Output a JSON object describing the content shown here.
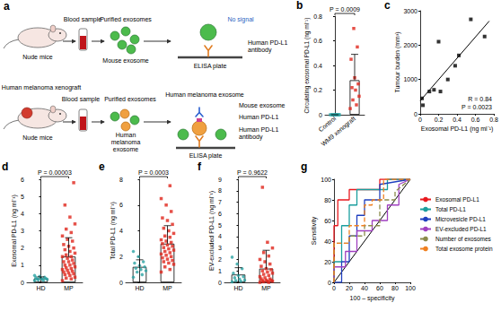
{
  "diagram": {
    "panel": "a",
    "rows": [
      {
        "mouse": "Nude mice",
        "blood": "Blood sample",
        "purified": "Purified exosomes",
        "exosome": "Mouse exosome",
        "signal": "No signal",
        "antibody": [
          "Human PD-L1",
          "antibody"
        ],
        "plate": "ELISA plate"
      },
      {
        "xenograft": "Human melanoma xenograft",
        "mouse": "Nude mice",
        "blood": "Blood sample",
        "purified": "Purified exosomes",
        "cluster_label": [
          "Human",
          "melanoma",
          "exosome"
        ],
        "mouse_exosome": "Mouse exosome",
        "melanoma_exosome": "Human melanoma exosome",
        "pdl1": "Human PD-L1",
        "antibody": [
          "Human PD-L1",
          "antibody"
        ],
        "plate": "ELISA plate"
      }
    ]
  },
  "chart_data": [
    {
      "panel": "b",
      "type": "bar",
      "categories": [
        "Control",
        "WM9 xenograft"
      ],
      "values": [
        0,
        0.28
      ],
      "error": [
        0,
        0.21
      ],
      "groups": [
        {
          "color": "#2aa3a3",
          "marker": "square",
          "points": [
            0,
            0,
            0,
            0,
            0,
            0,
            0,
            0
          ]
        },
        {
          "color": "#e0251b",
          "marker": "square",
          "points": [
            0.05,
            0.08,
            0.12,
            0.15,
            0.2,
            0.22,
            0.25,
            0.3,
            0.45,
            0.55,
            0.7
          ]
        }
      ],
      "ylabel": "Circulating exosomal PD-L1 (ng ml⁻¹)",
      "ylim": [
        0,
        0.8
      ],
      "yticks": [
        0,
        0.2,
        0.4,
        0.6,
        0.8
      ],
      "annotation": "P = 0.0009",
      "grid": false
    },
    {
      "panel": "c",
      "type": "scatter",
      "x": [
        0.02,
        0.03,
        0.1,
        0.15,
        0.2,
        0.22,
        0.3,
        0.38,
        0.42,
        0.55,
        0.7
      ],
      "values": [
        450,
        250,
        650,
        700,
        2100,
        650,
        1000,
        1400,
        1700,
        2750,
        2250
      ],
      "color": "#000000",
      "marker": "square",
      "fit": {
        "x": [
          0,
          0.75
        ],
        "values": [
          380,
          2700
        ]
      },
      "xlabel": "Exosomal PD-L1 (ng ml⁻¹)",
      "ylabel": "Tumour burden (mm³)",
      "xlim": [
        0,
        0.8
      ],
      "xticks": [
        0,
        0.2,
        0.4,
        0.6,
        0.8
      ],
      "ylim": [
        0,
        3000
      ],
      "yticks": [
        0,
        1000,
        2000,
        3000
      ],
      "annotations": [
        "R = 0.84",
        "P = 0.0023"
      ],
      "grid": false
    },
    {
      "panel": "d",
      "type": "bar",
      "categories": [
        "HD",
        "MP"
      ],
      "values": [
        0.23,
        1.5
      ],
      "error": [
        0.09,
        1.1
      ],
      "groups": [
        {
          "color": "#2aa3a3",
          "marker": "circle",
          "points": [
            0.1,
            0.12,
            0.15,
            0.18,
            0.2,
            0.2,
            0.22,
            0.25,
            0.28,
            0.3,
            0.35,
            0.4
          ]
        },
        {
          "color": "#e0251b",
          "marker": "square",
          "points": [
            0.1,
            0.2,
            0.25,
            0.3,
            0.4,
            0.45,
            0.5,
            0.55,
            0.6,
            0.65,
            0.7,
            0.75,
            0.8,
            0.85,
            0.9,
            1.0,
            1.0,
            1.1,
            1.2,
            1.2,
            1.3,
            1.4,
            1.5,
            1.5,
            1.6,
            1.7,
            1.8,
            1.9,
            2.0,
            2.1,
            2.2,
            2.4,
            2.5,
            2.7,
            2.9,
            3.1,
            3.4,
            3.8,
            4.5,
            5.8
          ]
        }
      ],
      "ylabel": "Exosomal PD-L1 (ng ml⁻¹)",
      "ylim": [
        0,
        6
      ],
      "yticks": [
        0,
        1,
        2,
        3,
        4,
        5,
        6
      ],
      "annotation": "P = 0.00003",
      "grid": false
    },
    {
      "panel": "e",
      "type": "bar",
      "categories": [
        "HD",
        "MP"
      ],
      "values": [
        1.2,
        3.0
      ],
      "error": [
        0.55,
        1.4
      ],
      "groups": [
        {
          "color": "#2aa3a3",
          "marker": "circle",
          "points": [
            0.4,
            0.6,
            0.8,
            0.9,
            1.0,
            1.1,
            1.2,
            1.3,
            1.5,
            1.6,
            2.0,
            2.4
          ]
        },
        {
          "color": "#e0251b",
          "marker": "square",
          "points": [
            0.8,
            1.0,
            1.2,
            1.4,
            1.5,
            1.6,
            1.7,
            1.8,
            1.9,
            2.0,
            2.1,
            2.2,
            2.3,
            2.4,
            2.5,
            2.6,
            2.7,
            2.8,
            2.9,
            3.0,
            3.1,
            3.2,
            3.3,
            3.5,
            3.6,
            3.8,
            4.0,
            4.2,
            4.5,
            4.8,
            5.0,
            5.5,
            6.0,
            6.5,
            7.5
          ]
        }
      ],
      "ylabel": "Total PD-L1 (ng ml⁻¹)",
      "ylim": [
        0,
        8
      ],
      "yticks": [
        0,
        2,
        4,
        6,
        8
      ],
      "annotation": "P = 0.0003",
      "grid": false
    },
    {
      "panel": "f",
      "type": "bar",
      "categories": [
        "HD",
        "MP"
      ],
      "values": [
        0.68,
        1.2
      ],
      "error": [
        0.6,
        1.6
      ],
      "groups": [
        {
          "color": "#2aa3a3",
          "marker": "circle",
          "points": [
            0.05,
            0.1,
            0.15,
            0.2,
            0.3,
            0.4,
            0.5,
            0.6,
            0.8,
            1.2,
            1.6,
            2.2
          ]
        },
        {
          "color": "#e0251b",
          "marker": "square",
          "points": [
            0,
            0,
            0.05,
            0.1,
            0.1,
            0.15,
            0.2,
            0.2,
            0.3,
            0.3,
            0.4,
            0.5,
            0.6,
            0.7,
            0.8,
            0.9,
            1.0,
            1.1,
            1.2,
            1.4,
            1.6,
            1.8,
            2.0,
            2.3,
            2.6,
            3.0,
            3.5,
            8.3
          ]
        }
      ],
      "ylabel": "EV-excluded PD-L1 (ng ml⁻¹)",
      "ylim": [
        0,
        9
      ],
      "yticks": [
        0,
        1,
        2,
        3,
        4,
        5,
        6,
        7,
        8,
        9
      ],
      "annotation": "P = 0.9622",
      "grid": false
    },
    {
      "panel": "g",
      "type": "line",
      "xlabel": "100 – specificity",
      "ylabel": "Sensitivity",
      "xlim": [
        0,
        100
      ],
      "xticks": [
        0,
        20,
        40,
        60,
        80,
        100
      ],
      "ylim": [
        0,
        100
      ],
      "yticks": [
        0,
        20,
        40,
        60,
        80,
        100
      ],
      "legend": "right",
      "grid": false,
      "series": [
        {
          "name": "Exosomal PD-L1",
          "color": "#e8191f",
          "line_style": "solid",
          "x": [
            0,
            0,
            5,
            5,
            20,
            20,
            60,
            60,
            100
          ],
          "values": [
            0,
            55,
            55,
            80,
            80,
            90,
            90,
            100,
            100
          ]
        },
        {
          "name": "Total PD-L1",
          "color": "#1a9e9e",
          "line_style": "solid",
          "x": [
            0,
            0,
            10,
            10,
            20,
            20,
            30,
            30,
            70,
            70,
            100
          ],
          "values": [
            0,
            20,
            20,
            55,
            55,
            75,
            75,
            90,
            90,
            100,
            100
          ]
        },
        {
          "name": "Microvesicle PD-L1",
          "color": "#1f3fbf",
          "line_style": "solid",
          "x": [
            0,
            10,
            10,
            20,
            20,
            30,
            30,
            40,
            40,
            60,
            60,
            100
          ],
          "values": [
            0,
            0,
            20,
            20,
            45,
            45,
            65,
            65,
            80,
            80,
            95,
            100
          ]
        },
        {
          "name": "EV-excluded PD-L1",
          "color": "#a040c0",
          "line_style": "solid",
          "x": [
            0,
            0,
            15,
            15,
            30,
            30,
            50,
            50,
            70,
            70,
            85,
            85,
            100
          ],
          "values": [
            0,
            15,
            15,
            30,
            30,
            50,
            50,
            60,
            60,
            75,
            75,
            95,
            100
          ]
        },
        {
          "name": "Number of exosomes",
          "color": "#8b8b4b",
          "line_style": "dashed",
          "x": [
            0,
            0,
            20,
            20,
            40,
            40,
            60,
            60,
            80,
            80,
            100
          ],
          "values": [
            0,
            38,
            38,
            45,
            45,
            55,
            55,
            80,
            80,
            88,
            100
          ]
        },
        {
          "name": "Total exosome protein",
          "color": "#f08020",
          "line_style": "dashed",
          "x": [
            0,
            0,
            20,
            20,
            40,
            40,
            50,
            50,
            65,
            65,
            100
          ],
          "values": [
            0,
            38,
            38,
            55,
            55,
            75,
            75,
            80,
            80,
            100,
            100
          ]
        }
      ],
      "reference": {
        "x": [
          0,
          100
        ],
        "values": [
          0,
          100
        ],
        "color": "#000000"
      }
    }
  ]
}
